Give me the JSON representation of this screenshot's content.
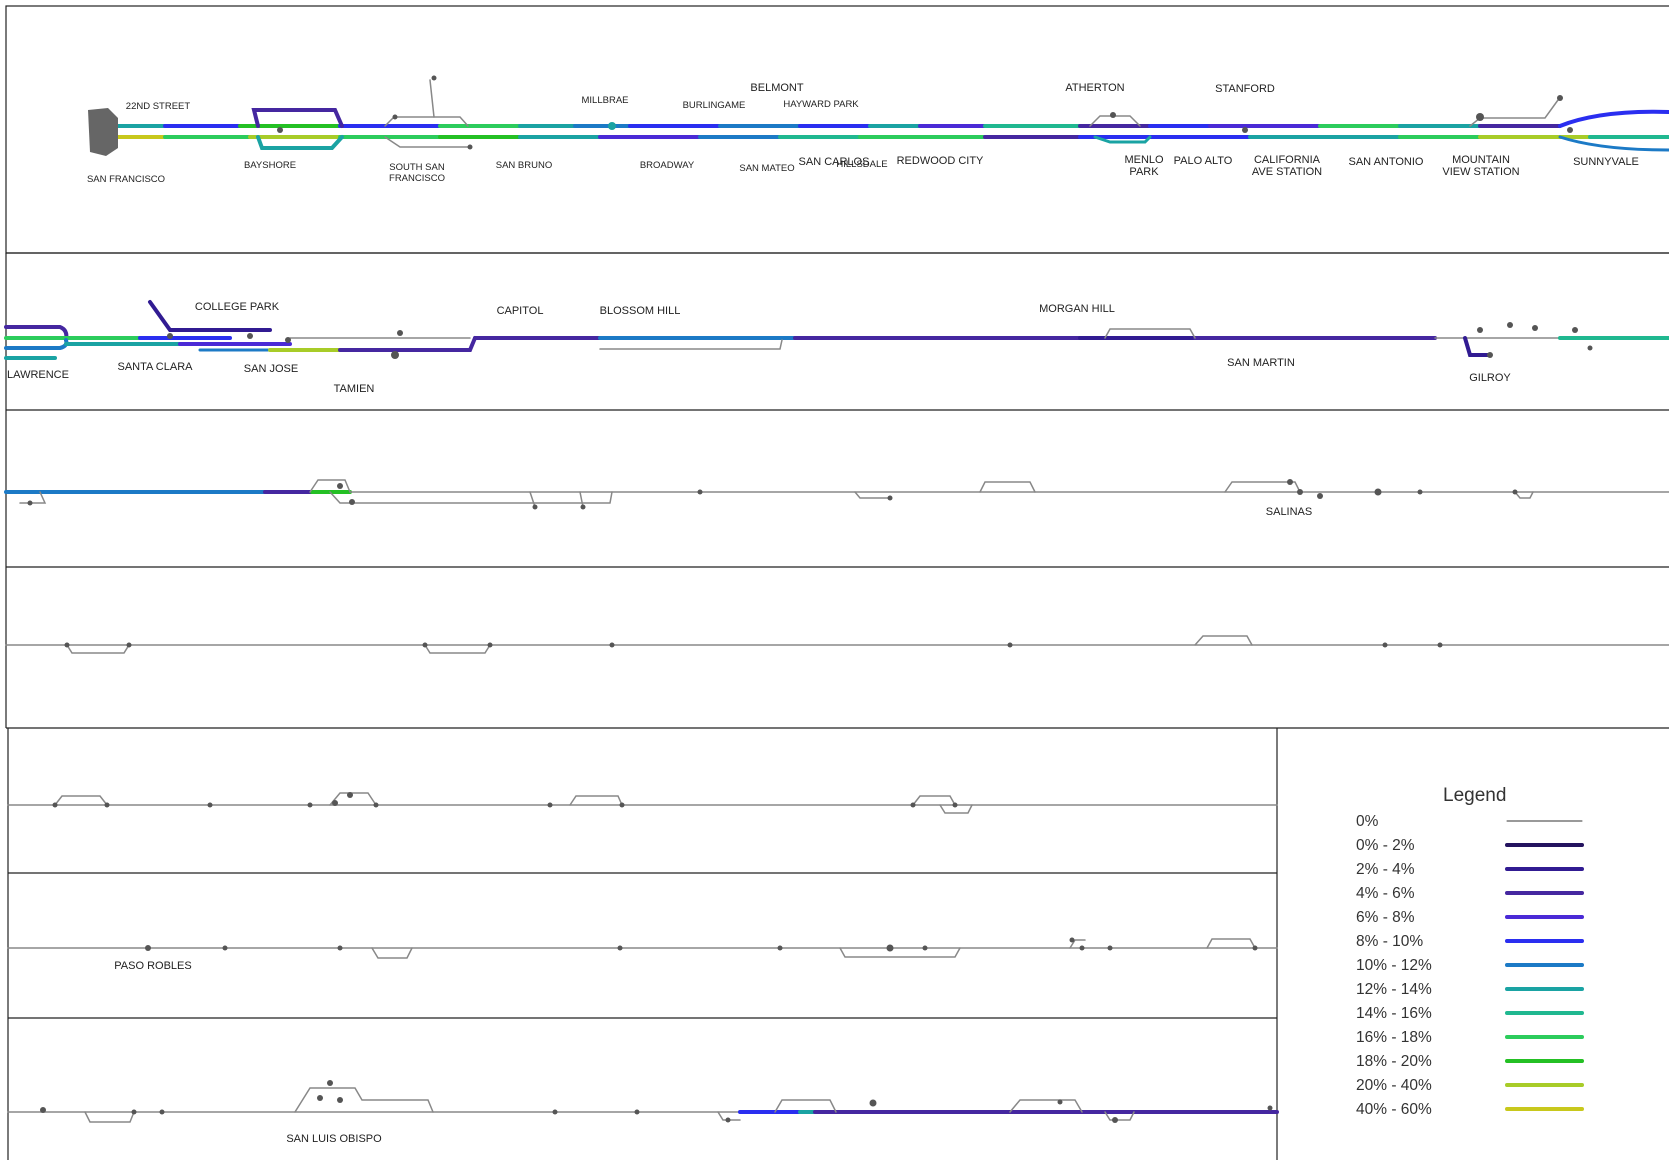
{
  "legend": {
    "title": "Legend",
    "items": [
      {
        "label": "0%",
        "color": "#333333"
      },
      {
        "label": "0% - 2%",
        "color": "#24135f"
      },
      {
        "label": "2% - 4%",
        "color": "#311b92"
      },
      {
        "label": "4% - 6%",
        "color": "#4527a0"
      },
      {
        "label": "6% - 8%",
        "color": "#4a2ad6"
      },
      {
        "label": "8% - 10%",
        "color": "#2a2ef0"
      },
      {
        "label": "10% - 12%",
        "color": "#1c7ac6"
      },
      {
        "label": "12% - 14%",
        "color": "#1aa3a3"
      },
      {
        "label": "14% - 16%",
        "color": "#20b890"
      },
      {
        "label": "16% - 18%",
        "color": "#2ccc5c"
      },
      {
        "label": "18% - 20%",
        "color": "#24c024"
      },
      {
        "label": "20% - 40%",
        "color": "#a8cc28"
      },
      {
        "label": "40% - 60%",
        "color": "#c8c81c"
      }
    ]
  },
  "stations": {
    "s22nd_street": "22ND STREET",
    "san_francisco": "SAN FRANCISCO",
    "bayshore": "BAYSHORE",
    "south_sf_1": "SOUTH SAN",
    "south_sf_2": "FRANCISCO",
    "millbrae": "MILLBRAE",
    "san_bruno": "SAN BRUNO",
    "burlingame": "BURLINGAME",
    "broadway": "BROADWAY",
    "belmont": "BELMONT",
    "hayward_park": "HAYWARD PARK",
    "san_mateo": "SAN MATEO",
    "san_carlos": "SAN CARLOS",
    "hillsdale": "HILLSDALE",
    "redwood_city": "REDWOOD CITY",
    "atherton": "ATHERTON",
    "menlo_1": "MENLO",
    "menlo_2": "PARK",
    "palo_alto": "PALO ALTO",
    "stanford": "STANFORD",
    "california_1": "CALIFORNIA",
    "california_2": "AVE STATION",
    "san_antonio": "SAN ANTONIO",
    "mountain_view_1": "MOUNTAIN",
    "mountain_view_2": "VIEW STATION",
    "sunnyvale": "SUNNYVALE",
    "lawrence": "LAWRENCE",
    "college_park": "COLLEGE PARK",
    "santa_clara": "SANTA CLARA",
    "san_jose": "SAN JOSE",
    "tamien": "TAMIEN",
    "capitol": "CAPITOL",
    "blossom_hill": "BLOSSOM HILL",
    "morgan_hill": "MORGAN HILL",
    "san_martin": "SAN MARTIN",
    "gilroy": "GILROY",
    "salinas": "SALINAS",
    "paso_robles": "PASO ROBLES",
    "san_luis_obispo": "SAN LUIS OBISPO"
  }
}
